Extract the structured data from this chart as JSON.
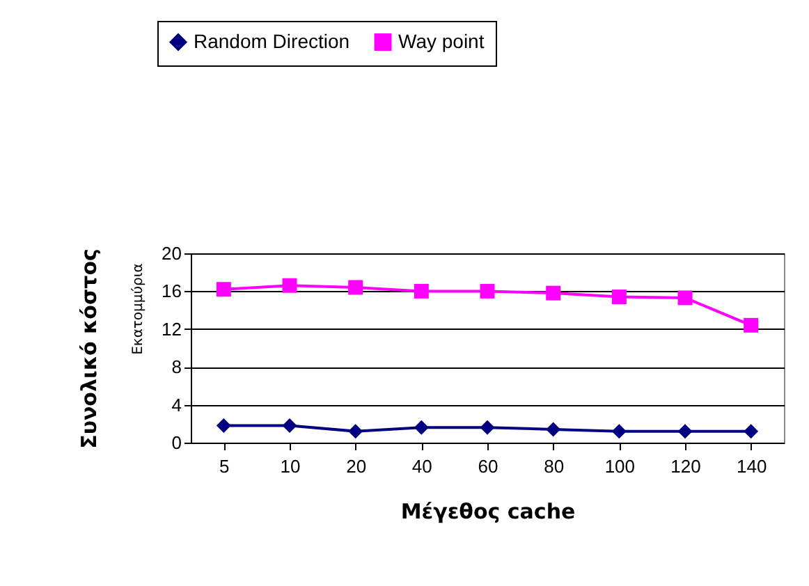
{
  "chart_data": {
    "type": "line",
    "xlabel": "Μέγεθος cache",
    "ylabel": "Συνολικό κόστος",
    "annotations": [
      "Εκατομμύρια"
    ],
    "categories": [
      "5",
      "10",
      "20",
      "40",
      "60",
      "80",
      "100",
      "120",
      "140"
    ],
    "series": [
      {
        "name": "Random Direction",
        "color": "#000080",
        "marker": "diamond",
        "values": [
          1.8,
          1.8,
          1.2,
          1.6,
          1.6,
          1.4,
          1.2,
          1.2,
          1.2
        ]
      },
      {
        "name": "Way point",
        "color": "#ff00ff",
        "marker": "square",
        "values": [
          16.2,
          16.6,
          16.4,
          16.0,
          16.0,
          15.8,
          15.4,
          15.3,
          12.4
        ]
      }
    ],
    "ylim": [
      0,
      20
    ],
    "yticks": [
      0,
      4,
      8,
      12,
      16,
      20
    ],
    "grid": "y",
    "legend": "top",
    "line_style": "solid"
  }
}
